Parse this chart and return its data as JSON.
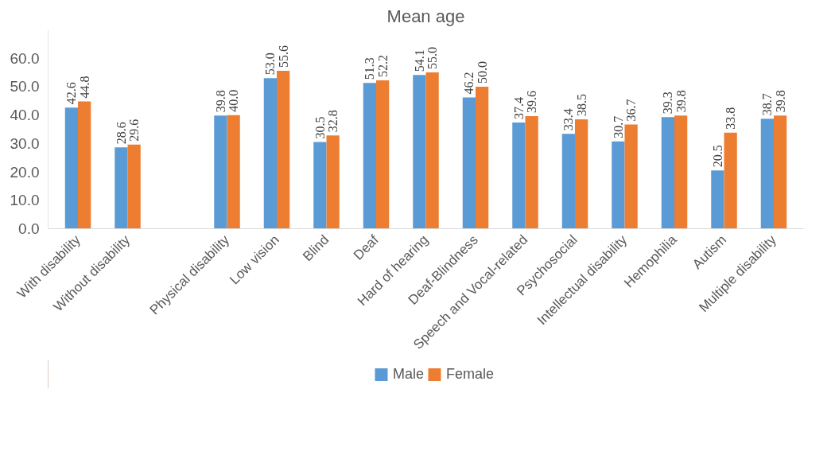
{
  "chart_data": {
    "type": "bar",
    "title": "Mean age",
    "categories": [
      "With disability",
      "Without disability",
      null,
      "Physical disability",
      "Low vision",
      "Blind",
      "Deaf",
      "Hard of hearing",
      "Deaf-Blindness",
      "Speech and Vocal-related",
      "Psychosocial",
      "Intellectual disability",
      "Hemophilia",
      "Autism",
      "Multiple disability"
    ],
    "series": [
      {
        "name": "Male",
        "color": "#5b9bd5",
        "values": [
          42.6,
          28.6,
          null,
          39.8,
          53.0,
          30.5,
          51.3,
          54.1,
          46.2,
          37.4,
          33.4,
          30.7,
          39.3,
          20.5,
          38.7
        ],
        "value_labels": [
          "42.6",
          "28.6",
          null,
          "39.8",
          "53.0",
          "30.5",
          "51.3",
          "54.1",
          "46.2",
          "37.4",
          "33.4",
          "30.7",
          "39.3",
          "20.5",
          "38.7"
        ]
      },
      {
        "name": "Female",
        "color": "#ed7d31",
        "values": [
          44.8,
          29.6,
          null,
          40.0,
          55.6,
          32.8,
          52.2,
          55.0,
          50.0,
          39.6,
          38.5,
          36.7,
          39.8,
          33.8,
          39.8
        ],
        "value_labels": [
          "44.8",
          "29.6",
          null,
          "40.0",
          "55.6",
          "32.8",
          "52.2",
          "55.0",
          "50.0",
          "39.6",
          "38.5",
          "36.7",
          "39.8",
          "33.8",
          "39.8"
        ]
      }
    ],
    "ylim": [
      0,
      70
    ],
    "yticks": [
      {
        "value": 0,
        "label": "0.0"
      },
      {
        "value": 10,
        "label": "10.0"
      },
      {
        "value": 20,
        "label": "20.0"
      },
      {
        "value": 30,
        "label": "30.0"
      },
      {
        "value": 40,
        "label": "40.0"
      },
      {
        "value": 50,
        "label": "50.0"
      },
      {
        "value": 60,
        "label": "60.0"
      }
    ],
    "data_labels": true,
    "legend": "bottom"
  }
}
